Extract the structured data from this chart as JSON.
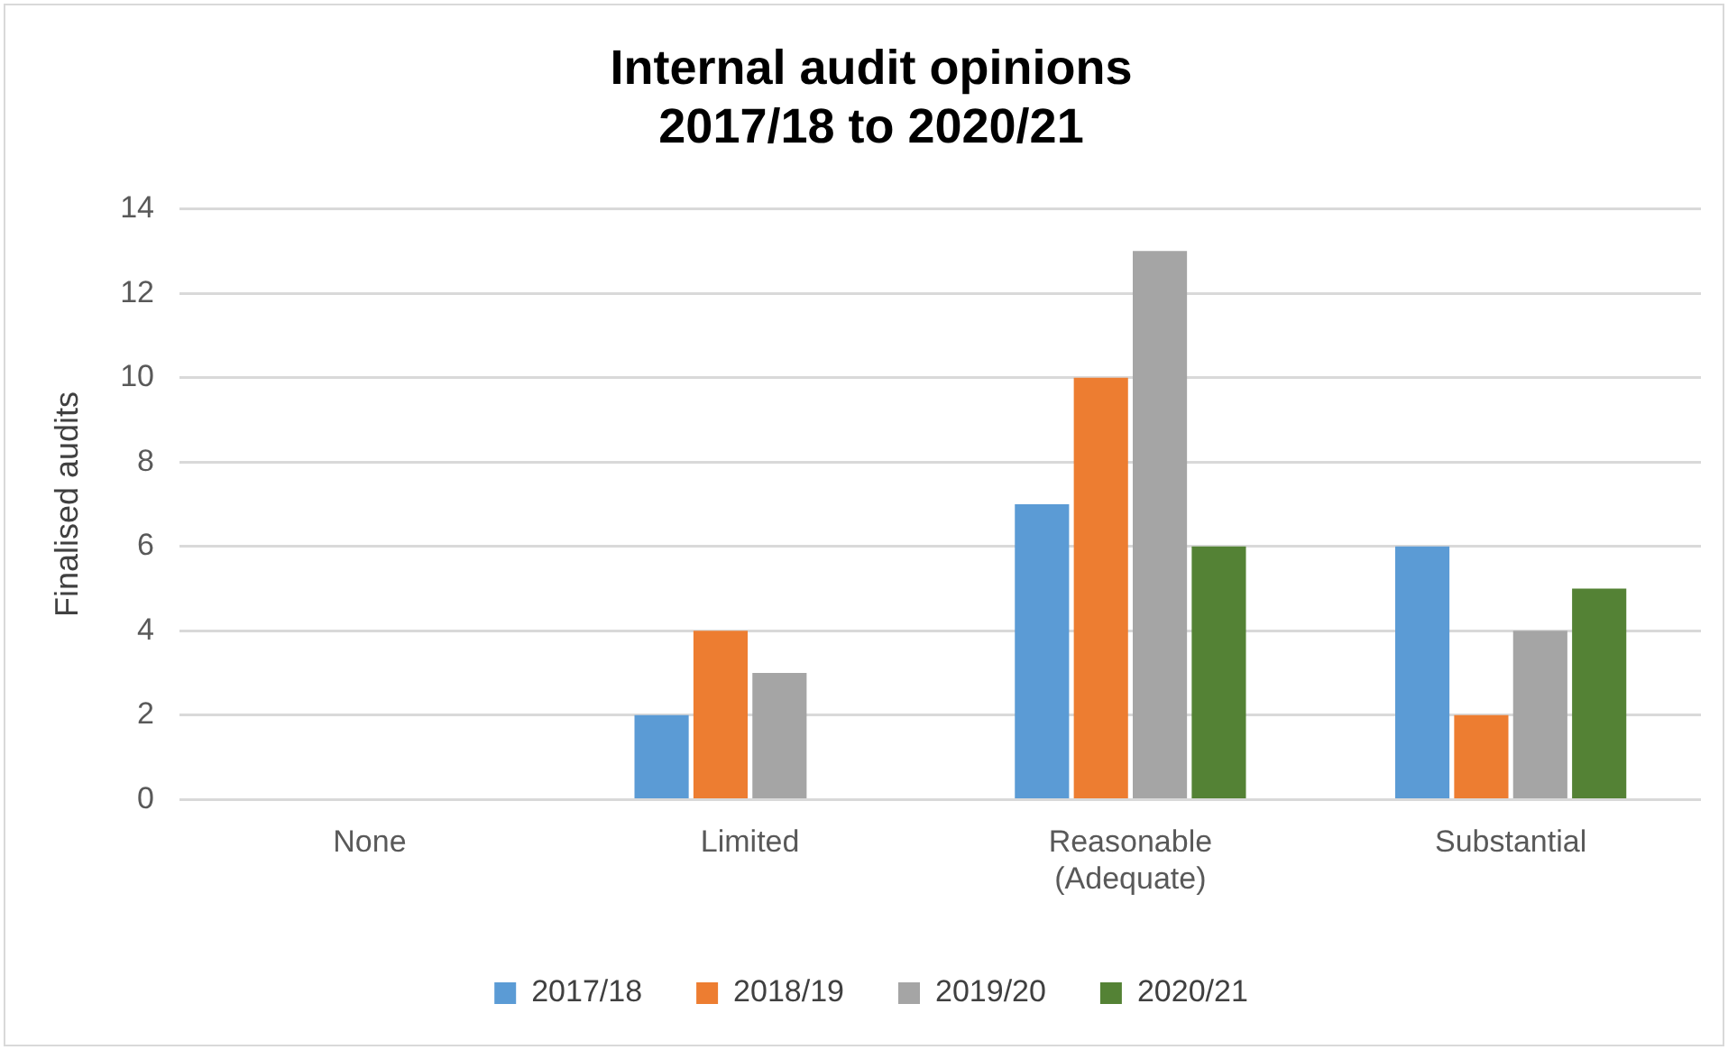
{
  "chart_data": {
    "type": "bar",
    "title": "Internal audit opinions\n2017/18 to 2020/21",
    "ylabel": "Finalised audits",
    "categories": [
      "None",
      "Limited",
      "Reasonable\n(Adequate)",
      "Substantial"
    ],
    "series": [
      {
        "name": "2017/18",
        "color": "#5b9bd5",
        "values": [
          0,
          2,
          7,
          6
        ]
      },
      {
        "name": "2018/19",
        "color": "#ed7d31",
        "values": [
          0,
          4,
          10,
          2
        ]
      },
      {
        "name": "2019/20",
        "color": "#a5a5a5",
        "values": [
          0,
          3,
          13,
          4
        ]
      },
      {
        "name": "2020/21",
        "color": "#548235",
        "values": [
          0,
          0,
          6,
          5
        ]
      }
    ],
    "ylim": [
      0,
      14
    ],
    "yticks": [
      0,
      2,
      4,
      6,
      8,
      10,
      12,
      14
    ],
    "grid": "y",
    "legend": "bottom"
  }
}
